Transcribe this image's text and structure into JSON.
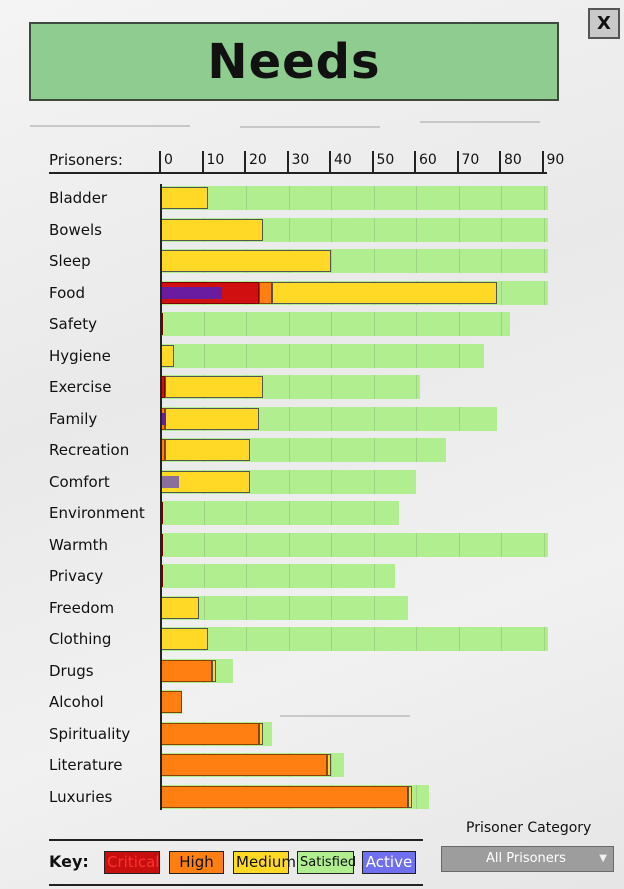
{
  "window": {
    "title": "Needs",
    "close_label": "X"
  },
  "header": {
    "prisoners_label": "Prisoners:"
  },
  "axis": {
    "min": 0,
    "max": 90,
    "ticks": [
      "0",
      "10",
      "20",
      "30",
      "40",
      "50",
      "60",
      "70",
      "80",
      "90"
    ]
  },
  "rows": [
    {
      "label": "Bladder",
      "total": 92,
      "critical": 0,
      "high": 0,
      "medium": 11,
      "active": 0
    },
    {
      "label": "Bowels",
      "total": 92,
      "critical": 0,
      "high": 0,
      "medium": 24,
      "active": 0
    },
    {
      "label": "Sleep",
      "total": 92,
      "critical": 0,
      "high": 0,
      "medium": 40,
      "active": 0
    },
    {
      "label": "Food",
      "total": 92,
      "critical": 23,
      "high": 3,
      "medium": 53,
      "active": 14
    },
    {
      "label": "Safety",
      "total": 82,
      "critical": 0.4,
      "high": 0,
      "medium": 0,
      "active": 0
    },
    {
      "label": "Hygiene",
      "total": 76,
      "critical": 0,
      "high": 0,
      "medium": 3,
      "active": 0
    },
    {
      "label": "Exercise",
      "total": 61,
      "critical": 1,
      "high": 0,
      "medium": 23,
      "active": 0
    },
    {
      "label": "Family",
      "total": 79,
      "critical": 0,
      "high": 1,
      "medium": 22,
      "active": 1
    },
    {
      "label": "Recreation",
      "total": 67,
      "critical": 0,
      "high": 1,
      "medium": 20,
      "active": 0
    },
    {
      "label": "Comfort",
      "total": 60,
      "critical": 0,
      "high": 0,
      "medium": 21,
      "active": 4
    },
    {
      "label": "Environment",
      "total": 56,
      "critical": 0.4,
      "high": 0,
      "medium": 0,
      "active": 0
    },
    {
      "label": "Warmth",
      "total": 92,
      "critical": 0.4,
      "high": 0,
      "medium": 0,
      "active": 0
    },
    {
      "label": "Privacy",
      "total": 55,
      "critical": 0.4,
      "high": 0,
      "medium": 0,
      "active": 0
    },
    {
      "label": "Freedom",
      "total": 58,
      "critical": 0,
      "high": 0,
      "medium": 9,
      "active": 0
    },
    {
      "label": "Clothing",
      "total": 92,
      "critical": 0,
      "high": 0,
      "medium": 11,
      "active": 0
    },
    {
      "label": "Drugs",
      "total": 17,
      "critical": 0,
      "high": 12,
      "medium": 1,
      "active": 0
    },
    {
      "label": "Alcohol",
      "total": 5,
      "critical": 0,
      "high": 5,
      "medium": 0,
      "active": 0
    },
    {
      "label": "Spirituality",
      "total": 26,
      "critical": 0,
      "high": 23,
      "medium": 1,
      "active": 0
    },
    {
      "label": "Literature",
      "total": 43,
      "critical": 0,
      "high": 39,
      "medium": 1,
      "active": 0
    },
    {
      "label": "Luxuries",
      "total": 63,
      "critical": 0,
      "high": 58,
      "medium": 1,
      "active": 0
    }
  ],
  "key": {
    "label": "Key:",
    "critical": "Critical",
    "high": "High",
    "medium": "Medium",
    "satisfied": "Satisfied",
    "active": "Active"
  },
  "colors": {
    "critical": "#d01010",
    "high": "#ff7f12",
    "medium": "#ffd926",
    "satisfied": "#b0ee90",
    "active": "#7070e8",
    "title_bg": "#8fcc8f"
  },
  "prisoner_category": {
    "title": "Prisoner Category",
    "selected": "All Prisoners"
  }
}
